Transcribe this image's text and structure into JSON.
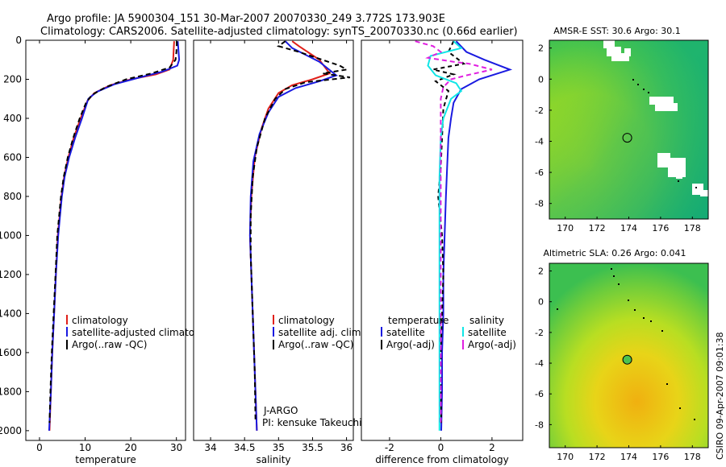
{
  "header": {
    "line1": "Argo profile: JA 5900304_151 30-Mar-2007 20070330_249 3.772S 173.903E",
    "line2": "Climatology: CARS2006. Satellite-adjusted climatology: synTS_20070330.nc (0.66d earlier)"
  },
  "colors": {
    "climatology": "#e0201a",
    "satellite": "#1a1ae0",
    "argo": "#000000",
    "sat_salinity": "#10e6e6",
    "argo_salinity": "#e020e0"
  },
  "chart_data": [
    {
      "id": "temperature",
      "type": "line",
      "xlabel": "temperature",
      "xlim": [
        -3,
        32
      ],
      "xticks": [
        "0",
        "10",
        "20",
        "30"
      ],
      "xtick_values": [
        0,
        10,
        20,
        30
      ],
      "ylim": [
        2050,
        0
      ],
      "yticks": [
        "0",
        "200",
        "400",
        "600",
        "800",
        "1000",
        "1200",
        "1400",
        "1600",
        "1800",
        "2000"
      ],
      "ytick_values": [
        0,
        200,
        400,
        600,
        800,
        1000,
        1200,
        1400,
        1600,
        1800,
        2000
      ],
      "legend": [
        "climatology",
        "satellite-adjusted climatology",
        "Argo(..raw -QC)"
      ],
      "series": [
        {
          "name": "climatology",
          "color": "#e0201a",
          "dash": "",
          "points": [
            [
              29.5,
              5
            ],
            [
              29.4,
              50
            ],
            [
              29.3,
              100
            ],
            [
              28.5,
              150
            ],
            [
              25.5,
              175
            ],
            [
              20,
              200
            ],
            [
              15.5,
              230
            ],
            [
              12,
              270
            ],
            [
              10.5,
              310
            ],
            [
              9,
              400
            ],
            [
              7.5,
              500
            ],
            [
              6.3,
              600
            ],
            [
              5.4,
              700
            ],
            [
              4.8,
              800
            ],
            [
              4.4,
              900
            ],
            [
              4.0,
              1000
            ],
            [
              3.6,
              1200
            ],
            [
              3.2,
              1400
            ],
            [
              2.8,
              1600
            ],
            [
              2.5,
              1800
            ],
            [
              2.2,
              2000
            ]
          ]
        },
        {
          "name": "satellite-adjusted climatology",
          "color": "#1a1ae0",
          "dash": "",
          "points": [
            [
              30.3,
              5
            ],
            [
              30.6,
              100
            ],
            [
              30.2,
              130
            ],
            [
              27,
              160
            ],
            [
              22,
              190
            ],
            [
              16.5,
              225
            ],
            [
              12.5,
              265
            ],
            [
              10.7,
              300
            ],
            [
              9.3,
              400
            ],
            [
              7.8,
              500
            ],
            [
              6.5,
              600
            ],
            [
              5.5,
              700
            ],
            [
              4.9,
              800
            ],
            [
              4.5,
              900
            ],
            [
              4.1,
              1000
            ],
            [
              3.6,
              1200
            ],
            [
              3.2,
              1400
            ],
            [
              2.8,
              1600
            ],
            [
              2.5,
              1800
            ],
            [
              2.1,
              2000
            ]
          ]
        },
        {
          "name": "Argo(..raw -QC)",
          "color": "#000000",
          "dash": "6,4",
          "points": [
            [
              30.1,
              5
            ],
            [
              30,
              60
            ],
            [
              29.8,
              100
            ],
            [
              28.5,
              140
            ],
            [
              24.5,
              170
            ],
            [
              19,
              200
            ],
            [
              14.5,
              240
            ],
            [
              11.5,
              280
            ],
            [
              10.2,
              320
            ],
            [
              8.8,
              400
            ],
            [
              7.4,
              500
            ],
            [
              6.2,
              600
            ],
            [
              5.3,
              700
            ],
            [
              4.7,
              800
            ],
            [
              4.3,
              900
            ],
            [
              3.9,
              1000
            ],
            [
              3.5,
              1200
            ],
            [
              3.1,
              1400
            ],
            [
              2.7,
              1600
            ],
            [
              2.4,
              1800
            ],
            [
              2.2,
              1960
            ]
          ]
        }
      ]
    },
    {
      "id": "salinity",
      "type": "line",
      "xlabel": "salinity",
      "xlim": [
        33.75,
        36.1
      ],
      "xticks": [
        "34",
        "34.5",
        "35",
        "35.5",
        "36"
      ],
      "xtick_values": [
        34,
        34.5,
        35,
        35.5,
        36
      ],
      "ylim": [
        2050,
        0
      ],
      "legend": [
        "climatology",
        "satellite adj. clim.",
        "Argo(..raw -QC)"
      ],
      "annotation": [
        "J-ARGO",
        "PI: kensuke Takeuchi"
      ],
      "series": [
        {
          "name": "climatology",
          "color": "#e0201a",
          "dash": "",
          "points": [
            [
              35.2,
              5
            ],
            [
              35.3,
              30
            ],
            [
              35.6,
              100
            ],
            [
              35.75,
              170
            ],
            [
              35.5,
              200
            ],
            [
              35.2,
              230
            ],
            [
              35.0,
              270
            ],
            [
              34.85,
              350
            ],
            [
              34.75,
              450
            ],
            [
              34.65,
              600
            ],
            [
              34.6,
              800
            ],
            [
              34.58,
              1000
            ],
            [
              34.6,
              1200
            ],
            [
              34.62,
              1400
            ],
            [
              34.64,
              1600
            ],
            [
              34.66,
              1800
            ],
            [
              34.68,
              2000
            ]
          ]
        },
        {
          "name": "satellite adj. clim.",
          "color": "#1a1ae0",
          "dash": "",
          "points": [
            [
              35.1,
              5
            ],
            [
              35.2,
              40
            ],
            [
              35.6,
              110
            ],
            [
              35.85,
              180
            ],
            [
              35.6,
              210
            ],
            [
              35.25,
              245
            ],
            [
              35.0,
              290
            ],
            [
              34.85,
              370
            ],
            [
              34.72,
              480
            ],
            [
              34.63,
              620
            ],
            [
              34.59,
              800
            ],
            [
              34.58,
              1000
            ],
            [
              34.6,
              1200
            ],
            [
              34.62,
              1400
            ],
            [
              34.64,
              1600
            ],
            [
              34.66,
              1800
            ],
            [
              34.68,
              2000
            ]
          ]
        },
        {
          "name": "Argo(..raw -QC)",
          "color": "#000000",
          "dash": "6,4",
          "points": [
            [
              35.1,
              5
            ],
            [
              35.0,
              30
            ],
            [
              35.3,
              60
            ],
            [
              35.9,
              130
            ],
            [
              36.0,
              150
            ],
            [
              35.65,
              170
            ],
            [
              36.05,
              190
            ],
            [
              35.4,
              215
            ],
            [
              35.1,
              250
            ],
            [
              34.95,
              300
            ],
            [
              34.8,
              400
            ],
            [
              34.68,
              550
            ],
            [
              34.62,
              700
            ],
            [
              34.59,
              900
            ],
            [
              34.59,
              1100
            ],
            [
              34.61,
              1300
            ],
            [
              34.63,
              1500
            ],
            [
              34.65,
              1700
            ],
            [
              34.66,
              1950
            ]
          ]
        }
      ]
    },
    {
      "id": "difference",
      "type": "line",
      "xlabel": "difference from climatology",
      "xlim": [
        -3.1,
        3.2
      ],
      "xticks": [
        "-2",
        "0",
        "2"
      ],
      "xtick_values": [
        -2,
        0,
        2
      ],
      "ylim": [
        2050,
        0
      ],
      "legend_left_title": "temperature",
      "legend_right_title": "salinity",
      "legend_left": [
        "satellite",
        "Argo(-adj)"
      ],
      "legend_right": [
        "satellite",
        "Argo(-adj)"
      ],
      "series": [
        {
          "name": "temperature satellite",
          "color": "#1a1ae0",
          "dash": "",
          "points": [
            [
              0.6,
              5
            ],
            [
              1.0,
              60
            ],
            [
              1.7,
              100
            ],
            [
              2.7,
              150
            ],
            [
              1.5,
              200
            ],
            [
              0.8,
              250
            ],
            [
              0.5,
              320
            ],
            [
              0.4,
              400
            ],
            [
              0.3,
              500
            ],
            [
              0.25,
              650
            ],
            [
              0.2,
              800
            ],
            [
              0.15,
              1000
            ],
            [
              0.1,
              1200
            ],
            [
              0.1,
              1400
            ],
            [
              0.05,
              1600
            ],
            [
              0.05,
              1800
            ],
            [
              0.02,
              2000
            ]
          ]
        },
        {
          "name": "temperature Argo(-adj)",
          "color": "#000000",
          "dash": "5,4",
          "points": [
            [
              0.5,
              5
            ],
            [
              0.3,
              60
            ],
            [
              0.9,
              120
            ],
            [
              -0.3,
              150
            ],
            [
              0.5,
              175
            ],
            [
              -0.2,
              210
            ],
            [
              0.3,
              260
            ],
            [
              0.1,
              350
            ],
            [
              0.05,
              500
            ],
            [
              0.0,
              650
            ],
            [
              -0.1,
              800
            ],
            [
              0.05,
              1000
            ],
            [
              0.1,
              1200
            ],
            [
              0.05,
              1400
            ],
            [
              0.0,
              1600
            ],
            [
              0.0,
              1800
            ],
            [
              0.02,
              1960
            ]
          ]
        },
        {
          "name": "salinity satellite",
          "color": "#10e6e6",
          "dash": "",
          "points": [
            [
              0.5,
              5
            ],
            [
              0.8,
              40
            ],
            [
              -0.4,
              80
            ],
            [
              -0.5,
              130
            ],
            [
              -0.2,
              180
            ],
            [
              0.6,
              220
            ],
            [
              0.8,
              260
            ],
            [
              0.4,
              300
            ],
            [
              0.1,
              400
            ],
            [
              0.0,
              500
            ],
            [
              -0.05,
              700
            ],
            [
              -0.05,
              900
            ],
            [
              -0.05,
              1100
            ],
            [
              -0.05,
              1300
            ],
            [
              -0.05,
              1500
            ],
            [
              -0.05,
              1700
            ],
            [
              -0.05,
              1900
            ],
            [
              -0.05,
              2000
            ]
          ]
        },
        {
          "name": "salinity Argo(-adj)",
          "color": "#e020e0",
          "dash": "6,4",
          "points": [
            [
              -1.0,
              5
            ],
            [
              -0.3,
              30
            ],
            [
              0.0,
              60
            ],
            [
              -0.5,
              90
            ],
            [
              0.5,
              110
            ],
            [
              1.1,
              120
            ],
            [
              2.0,
              150
            ],
            [
              1.0,
              180
            ],
            [
              0.4,
              200
            ],
            [
              0.1,
              240
            ],
            [
              0.0,
              300
            ],
            [
              0.0,
              400
            ],
            [
              0.0,
              600
            ],
            [
              0.0,
              800
            ],
            [
              0.0,
              1000
            ],
            [
              0.0,
              1200
            ],
            [
              0.0,
              1400
            ],
            [
              0.0,
              1600
            ],
            [
              0.0,
              1800
            ],
            [
              0.0,
              1960
            ]
          ]
        }
      ]
    },
    {
      "id": "sst_map",
      "type": "heatmap",
      "title": "AMSR-E SST: 30.6 Argo: 30.1",
      "xlim": [
        169,
        179
      ],
      "ylim": [
        -9,
        2.5
      ],
      "xticks": [
        "170",
        "172",
        "174",
        "176",
        "178"
      ],
      "xtick_values": [
        170,
        172,
        174,
        176,
        178
      ],
      "yticks": [
        "2",
        "0",
        "-2",
        "-4",
        "-6",
        "-8"
      ],
      "ytick_values": [
        2,
        0,
        -2,
        -4,
        -6,
        -8
      ],
      "argo_position": [
        173.903,
        -3.772
      ]
    },
    {
      "id": "sla_map",
      "type": "heatmap",
      "title": "Altimetric SLA: 0.26 Argo: 0.041",
      "xlim": [
        169,
        179
      ],
      "ylim": [
        -9.5,
        2.5
      ],
      "xticks": [
        "170",
        "172",
        "174",
        "176",
        "178"
      ],
      "xtick_values": [
        170,
        172,
        174,
        176,
        178
      ],
      "yticks": [
        "2",
        "0",
        "-2",
        "-4",
        "-6",
        "-8"
      ],
      "ytick_values": [
        2,
        0,
        -2,
        -4,
        -6,
        -8
      ],
      "argo_position": [
        173.903,
        -3.772
      ]
    }
  ],
  "footer": {
    "credit": "CSIRO 09-Apr-2007 09:01:38"
  }
}
